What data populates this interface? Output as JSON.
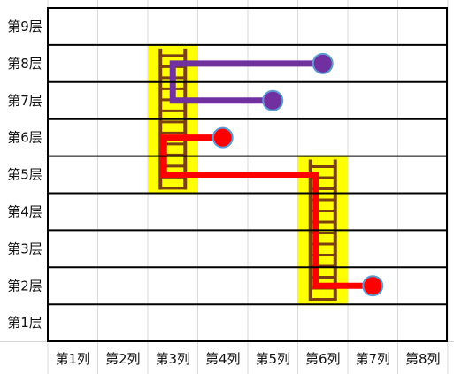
{
  "rows": [
    "第9层",
    "第8层",
    "第7层",
    "第6层",
    "第5层",
    "第4层",
    "第3层",
    "第2层",
    "第1层"
  ],
  "columns": [
    "第1列",
    "第2列",
    "第3列",
    "第4列",
    "第5列",
    "第6列",
    "第7列",
    "第8列"
  ],
  "colors": {
    "grid_line": "#000000",
    "light_grid": "#d9d9d9",
    "ladder_highlight": "#ffff00",
    "ladder_wood": "#7b3f14",
    "red_path": "#ff0000",
    "purple_path": "#7030a0",
    "marker_border": "#5b9bd5"
  },
  "ladders": [
    {
      "column": 3,
      "from_floor": 5,
      "to_floor": 8
    },
    {
      "column": 6,
      "from_floor": 2,
      "to_floor": 5
    }
  ],
  "paths": [
    {
      "name": "red-path",
      "color": "red_path",
      "marker": {
        "column": 7,
        "floor": 2
      }
    },
    {
      "name": "red-path-upper",
      "color": "red_path",
      "marker": {
        "column": 4,
        "floor": 6
      }
    },
    {
      "name": "purple-path-7",
      "color": "purple_path",
      "marker": {
        "column": 5,
        "floor": 7
      }
    },
    {
      "name": "purple-path-8",
      "color": "purple_path",
      "marker": {
        "column": 6,
        "floor": 8
      }
    }
  ]
}
